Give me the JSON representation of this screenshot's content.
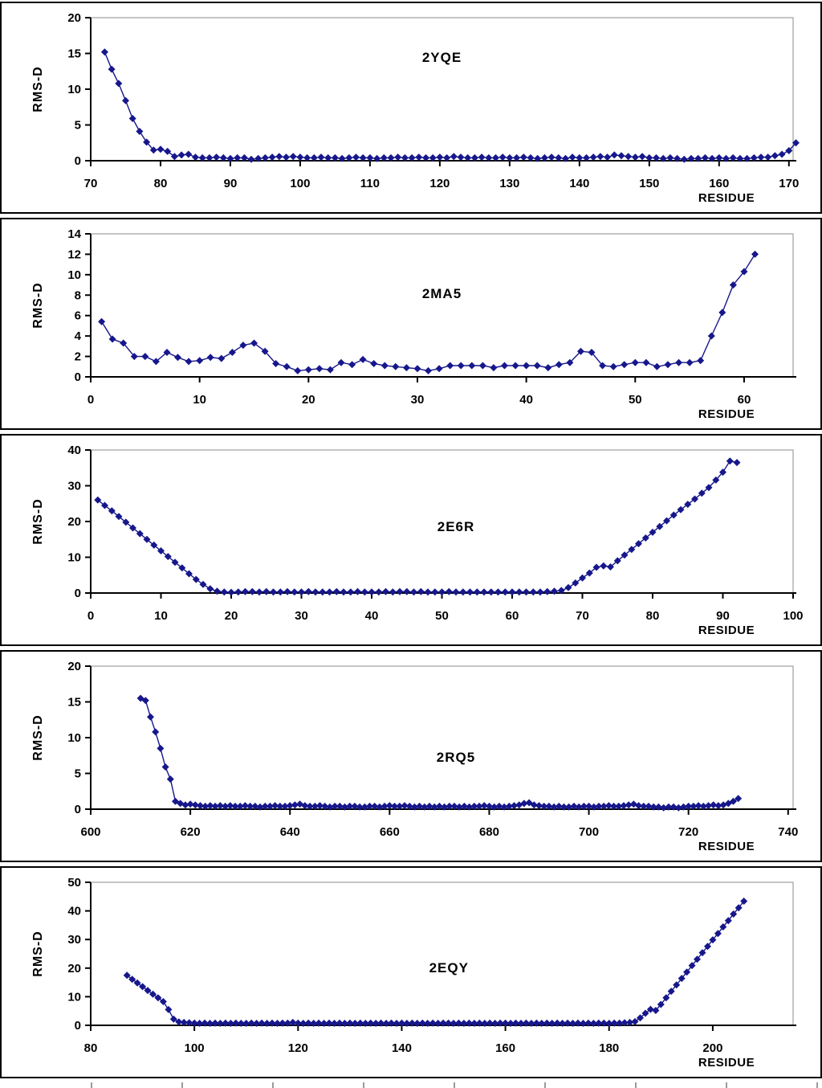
{
  "page": {
    "background": "#ffffff",
    "panel_border": "#000000"
  },
  "colors": {
    "series": "#17178c",
    "plot_border": "#a6a6a6",
    "axis": "#000000",
    "text": "#000000",
    "cropped_ticks": "#9a9a9a"
  },
  "axis_labels": {
    "y": "RMS-D",
    "x": "RESIDUE"
  },
  "chart_data": [
    {
      "type": "line",
      "title": "2YQE",
      "title_pos": {
        "xf": 0.5,
        "yf": 0.28
      },
      "xlabel": "RESIDUE",
      "ylabel": "RMS-D",
      "xlim": [
        70,
        170.6
      ],
      "ylim": [
        0,
        20
      ],
      "x_ticks": [
        70,
        80,
        90,
        100,
        110,
        120,
        130,
        140,
        150,
        160,
        170
      ],
      "y_ticks": [
        0,
        5,
        10,
        15,
        20
      ],
      "x_start": 72,
      "y_values": [
        15.2,
        12.8,
        10.8,
        8.4,
        5.9,
        4.1,
        2.6,
        1.5,
        1.6,
        1.3,
        0.6,
        0.8,
        0.9,
        0.5,
        0.4,
        0.4,
        0.5,
        0.4,
        0.3,
        0.4,
        0.4,
        0.2,
        0.3,
        0.4,
        0.5,
        0.6,
        0.5,
        0.6,
        0.5,
        0.4,
        0.4,
        0.5,
        0.4,
        0.4,
        0.3,
        0.4,
        0.5,
        0.4,
        0.4,
        0.3,
        0.4,
        0.4,
        0.5,
        0.4,
        0.4,
        0.5,
        0.4,
        0.4,
        0.5,
        0.4,
        0.6,
        0.5,
        0.4,
        0.4,
        0.5,
        0.4,
        0.4,
        0.5,
        0.4,
        0.4,
        0.5,
        0.4,
        0.3,
        0.4,
        0.5,
        0.4,
        0.3,
        0.5,
        0.4,
        0.4,
        0.5,
        0.6,
        0.5,
        0.8,
        0.7,
        0.6,
        0.5,
        0.6,
        0.4,
        0.4,
        0.3,
        0.4,
        0.3,
        0.2,
        0.3,
        0.3,
        0.4,
        0.3,
        0.4,
        0.3,
        0.4,
        0.3,
        0.3,
        0.4,
        0.5,
        0.5,
        0.7,
        0.9,
        1.4,
        2.5
      ]
    },
    {
      "type": "line",
      "title": "2MA5",
      "title_pos": {
        "xf": 0.5,
        "yf": 0.42
      },
      "xlabel": "RESIDUE",
      "ylabel": "RMS-D",
      "xlim": [
        0,
        64.5
      ],
      "ylim": [
        0,
        14
      ],
      "x_ticks": [
        0,
        10,
        20,
        30,
        40,
        50,
        60
      ],
      "y_ticks": [
        0,
        2,
        4,
        6,
        8,
        10,
        12,
        14
      ],
      "x_start": 1,
      "y_values": [
        5.4,
        3.7,
        3.3,
        2.0,
        2.0,
        1.5,
        2.4,
        1.9,
        1.5,
        1.6,
        1.9,
        1.8,
        2.4,
        3.1,
        3.3,
        2.5,
        1.3,
        1.0,
        0.6,
        0.7,
        0.8,
        0.7,
        1.4,
        1.2,
        1.7,
        1.3,
        1.1,
        1.0,
        0.9,
        0.8,
        0.6,
        0.8,
        1.1,
        1.1,
        1.1,
        1.1,
        0.9,
        1.1,
        1.1,
        1.1,
        1.1,
        0.9,
        1.2,
        1.4,
        2.5,
        2.4,
        1.1,
        1.0,
        1.2,
        1.4,
        1.4,
        1.0,
        1.2,
        1.4,
        1.4,
        1.6,
        4.0,
        6.3,
        9.0,
        10.3,
        12.0
      ]
    },
    {
      "type": "line",
      "title": "2E6R",
      "title_pos": {
        "xf": 0.52,
        "yf": 0.54
      },
      "xlabel": "RESIDUE",
      "ylabel": "RMS-D",
      "xlim": [
        0,
        100
      ],
      "ylim": [
        0,
        40
      ],
      "x_ticks": [
        0,
        10,
        20,
        30,
        40,
        50,
        60,
        70,
        80,
        90,
        100
      ],
      "y_ticks": [
        0,
        10,
        20,
        30,
        40
      ],
      "x_start": 1,
      "y_values": [
        26.0,
        24.5,
        23.0,
        21.4,
        19.8,
        18.2,
        16.6,
        15.0,
        13.4,
        11.8,
        10.2,
        8.6,
        7.0,
        5.4,
        3.8,
        2.4,
        1.2,
        0.5,
        0.3,
        0.2,
        0.3,
        0.4,
        0.4,
        0.3,
        0.4,
        0.3,
        0.3,
        0.4,
        0.3,
        0.3,
        0.4,
        0.3,
        0.3,
        0.3,
        0.4,
        0.3,
        0.3,
        0.4,
        0.3,
        0.3,
        0.3,
        0.4,
        0.3,
        0.4,
        0.4,
        0.3,
        0.4,
        0.3,
        0.3,
        0.3,
        0.4,
        0.3,
        0.3,
        0.3,
        0.3,
        0.3,
        0.3,
        0.3,
        0.3,
        0.3,
        0.3,
        0.3,
        0.3,
        0.3,
        0.4,
        0.5,
        0.7,
        1.5,
        2.8,
        4.2,
        5.6,
        7.2,
        7.6,
        7.3,
        9.0,
        10.6,
        12.2,
        13.8,
        15.4,
        17.0,
        18.6,
        20.2,
        21.8,
        23.3,
        24.8,
        26.3,
        27.9,
        29.5,
        31.6,
        33.8,
        36.9,
        36.5
      ]
    },
    {
      "type": "line",
      "title": "2RQ5",
      "title_pos": {
        "xf": 0.52,
        "yf": 0.64
      },
      "xlabel": "RESIDUE",
      "ylabel": "RMS-D",
      "xlim": [
        600,
        741
      ],
      "ylim": [
        0,
        20
      ],
      "x_ticks": [
        600,
        620,
        640,
        660,
        680,
        700,
        720,
        740
      ],
      "y_ticks": [
        0,
        5,
        10,
        15,
        20
      ],
      "x_start": 610,
      "y_values": [
        15.5,
        15.2,
        12.9,
        10.8,
        8.5,
        5.9,
        4.2,
        1.1,
        0.8,
        0.6,
        0.7,
        0.6,
        0.5,
        0.4,
        0.5,
        0.4,
        0.5,
        0.4,
        0.5,
        0.4,
        0.4,
        0.5,
        0.4,
        0.4,
        0.3,
        0.4,
        0.4,
        0.5,
        0.4,
        0.4,
        0.5,
        0.6,
        0.7,
        0.5,
        0.4,
        0.4,
        0.5,
        0.4,
        0.3,
        0.4,
        0.4,
        0.3,
        0.4,
        0.4,
        0.3,
        0.3,
        0.4,
        0.4,
        0.3,
        0.4,
        0.5,
        0.4,
        0.4,
        0.5,
        0.4,
        0.3,
        0.4,
        0.3,
        0.4,
        0.3,
        0.4,
        0.3,
        0.4,
        0.4,
        0.3,
        0.4,
        0.3,
        0.4,
        0.4,
        0.5,
        0.4,
        0.3,
        0.4,
        0.3,
        0.4,
        0.5,
        0.6,
        0.8,
        0.9,
        0.6,
        0.5,
        0.4,
        0.4,
        0.3,
        0.4,
        0.3,
        0.3,
        0.4,
        0.3,
        0.4,
        0.4,
        0.3,
        0.4,
        0.4,
        0.5,
        0.4,
        0.4,
        0.5,
        0.6,
        0.7,
        0.5,
        0.4,
        0.4,
        0.3,
        0.3,
        0.2,
        0.3,
        0.3,
        0.2,
        0.3,
        0.4,
        0.4,
        0.5,
        0.4,
        0.5,
        0.6,
        0.5,
        0.6,
        0.8,
        1.1,
        1.5
      ]
    },
    {
      "type": "line",
      "title": "2EQY",
      "title_pos": {
        "xf": 0.51,
        "yf": 0.6
      },
      "xlabel": "RESIDUE",
      "ylabel": "RMS-D",
      "xlim": [
        80,
        215.5
      ],
      "ylim": [
        0,
        50
      ],
      "x_ticks": [
        80,
        100,
        120,
        140,
        160,
        180,
        200
      ],
      "y_ticks": [
        0,
        10,
        20,
        30,
        40,
        50
      ],
      "x_start": 87,
      "y_values": [
        17.5,
        16.1,
        14.8,
        13.5,
        12.2,
        10.9,
        9.6,
        8.3,
        5.5,
        2.2,
        1.2,
        1.0,
        0.9,
        0.8,
        0.7,
        0.8,
        0.7,
        0.8,
        0.7,
        0.8,
        0.7,
        0.8,
        0.7,
        0.7,
        0.8,
        0.7,
        0.8,
        0.7,
        0.8,
        0.7,
        0.8,
        0.8,
        1.0,
        0.8,
        0.7,
        0.8,
        0.7,
        0.8,
        0.7,
        0.8,
        0.7,
        0.8,
        0.7,
        0.8,
        0.7,
        0.8,
        0.7,
        0.8,
        0.7,
        0.8,
        0.7,
        0.8,
        0.7,
        0.8,
        0.7,
        0.8,
        0.7,
        0.8,
        0.7,
        0.8,
        0.7,
        0.8,
        0.8,
        0.7,
        0.8,
        0.7,
        0.8,
        0.7,
        0.8,
        0.7,
        0.8,
        0.7,
        0.8,
        0.8,
        0.7,
        0.8,
        0.7,
        0.8,
        0.7,
        0.8,
        0.7,
        0.8,
        0.7,
        0.8,
        0.7,
        0.8,
        0.7,
        0.8,
        0.7,
        0.8,
        0.7,
        0.8,
        0.8,
        0.7,
        0.8,
        0.8,
        0.9,
        1.0,
        1.3,
        2.6,
        4.2,
        5.6,
        5.2,
        7.3,
        9.6,
        11.9,
        14.1,
        16.4,
        18.6,
        20.9,
        23.1,
        25.4,
        27.6,
        29.9,
        32.1,
        34.4,
        36.6,
        38.9,
        41.1,
        43.4
      ]
    }
  ]
}
